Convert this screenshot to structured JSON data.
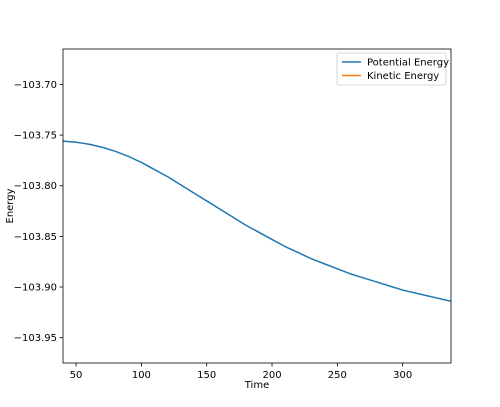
{
  "chart_data": {
    "type": "line",
    "title": "",
    "xlabel": "Time",
    "ylabel": "Energy",
    "xlim": [
      40,
      337
    ],
    "ylim": [
      -103.975,
      -103.665
    ],
    "xticks": [
      50,
      100,
      150,
      200,
      250,
      300
    ],
    "yticks": [
      -103.7,
      -103.75,
      -103.8,
      -103.85,
      -103.9,
      -103.95
    ],
    "xtick_labels": [
      "50",
      "100",
      "150",
      "200",
      "250",
      "300"
    ],
    "ytick_labels": [
      "−103.70",
      "−103.75",
      "−103.80",
      "−103.85",
      "−103.90",
      "−103.95"
    ],
    "grid": false,
    "legend_position": "top-right",
    "series": [
      {
        "name": "Potential Energy",
        "color": "#1f77b4",
        "x": [
          40,
          50,
          60,
          70,
          80,
          90,
          100,
          110,
          120,
          130,
          140,
          150,
          160,
          170,
          180,
          190,
          200,
          210,
          220,
          230,
          240,
          250,
          260,
          270,
          280,
          290,
          300,
          310,
          320,
          330,
          337
        ],
        "y": [
          -103.756,
          -103.757,
          -103.759,
          -103.762,
          -103.766,
          -103.771,
          -103.777,
          -103.784,
          -103.791,
          -103.799,
          -103.807,
          -103.815,
          -103.823,
          -103.831,
          -103.839,
          -103.846,
          -103.853,
          -103.86,
          -103.866,
          -103.872,
          -103.877,
          -103.882,
          -103.887,
          -103.891,
          -103.895,
          -103.899,
          -103.903,
          -103.906,
          -103.909,
          -103.912,
          -103.914
        ]
      },
      {
        "name": "Kinetic Energy",
        "color": "#ff7f0e",
        "x": [],
        "y": []
      }
    ]
  }
}
